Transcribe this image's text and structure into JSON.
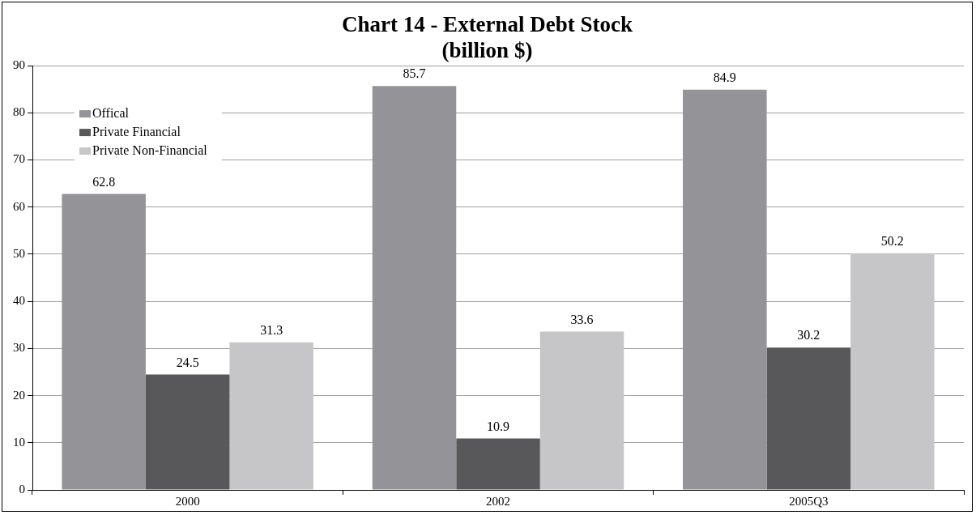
{
  "chart_data": {
    "type": "bar",
    "title": [
      "Chart 14 - External Debt Stock",
      "(billion $)"
    ],
    "categories": [
      "2000",
      "2002",
      "2005Q3"
    ],
    "series": [
      {
        "name": "Offical",
        "color": "#939398",
        "values": [
          62.8,
          85.7,
          84.9
        ]
      },
      {
        "name": "Private Financial",
        "color": "#58585a",
        "values": [
          24.5,
          10.9,
          30.2
        ]
      },
      {
        "name": "Private Non-Financial",
        "color": "#c6c6c8",
        "values": [
          31.3,
          33.6,
          50.2
        ]
      }
    ],
    "ylim": [
      0,
      90
    ],
    "yticks": [
      0,
      10,
      20,
      30,
      40,
      50,
      60,
      70,
      80,
      90
    ],
    "grid": "y",
    "legend": "top left",
    "data_labels": true
  }
}
